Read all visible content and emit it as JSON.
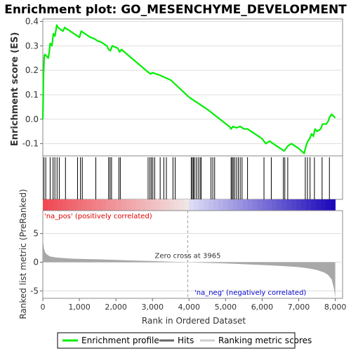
{
  "chart_data": [
    {
      "panel": "enrichment",
      "type": "line",
      "title": "Enrichment plot: GO_MESENCHYME_DEVELOPMENT",
      "ylabel": "Enrichment score (ES)",
      "ylim": [
        -0.15,
        0.41
      ],
      "yticks": [
        -0.1,
        0.0,
        0.1,
        0.2,
        0.3,
        0.4
      ],
      "ytick_labels": [
        "-0.1",
        "0.0",
        "0.1",
        "0.2",
        "0.3",
        "0.4"
      ],
      "xlim": [
        0,
        8200
      ],
      "grid": true,
      "series": [
        {
          "name": "Enrichment profile",
          "color": "#00ee00",
          "x": [
            0,
            20,
            40,
            60,
            150,
            180,
            200,
            250,
            290,
            330,
            350,
            380,
            420,
            500,
            550,
            600,
            650,
            700,
            950,
            1000,
            1050,
            1100,
            1300,
            1400,
            1450,
            1500,
            1600,
            1750,
            1800,
            1850,
            1900,
            2050,
            2100,
            2150,
            2900,
            2950,
            3000,
            3200,
            3500,
            4000,
            4500,
            4800,
            5100,
            5150,
            5200,
            5300,
            5400,
            5500,
            5600,
            6000,
            6100,
            6200,
            6300,
            6400,
            6500,
            6600,
            6700,
            6800,
            7000,
            7150,
            7200,
            7250,
            7300,
            7350,
            7400,
            7450,
            7500,
            7600,
            7650,
            7700,
            7750,
            7800,
            7850,
            7900,
            8000
          ],
          "y": [
            0.0,
            0.18,
            0.26,
            0.265,
            0.25,
            0.28,
            0.31,
            0.3,
            0.35,
            0.34,
            0.355,
            0.385,
            0.375,
            0.365,
            0.36,
            0.375,
            0.37,
            0.365,
            0.34,
            0.335,
            0.36,
            0.355,
            0.335,
            0.33,
            0.325,
            0.32,
            0.315,
            0.3,
            0.285,
            0.28,
            0.3,
            0.29,
            0.275,
            0.285,
            0.19,
            0.185,
            0.19,
            0.18,
            0.16,
            0.09,
            0.04,
            0.005,
            -0.03,
            -0.04,
            -0.03,
            -0.035,
            -0.03,
            -0.04,
            -0.04,
            -0.08,
            -0.1,
            -0.09,
            -0.1,
            -0.11,
            -0.12,
            -0.13,
            -0.11,
            -0.1,
            -0.12,
            -0.14,
            -0.11,
            -0.09,
            -0.08,
            -0.06,
            -0.07,
            -0.04,
            -0.05,
            -0.04,
            -0.02,
            -0.02,
            -0.02,
            -0.01,
            0.01,
            0.02,
            0.005
          ]
        }
      ],
      "hits_x": [
        30,
        80,
        200,
        280,
        330,
        390,
        450,
        620,
        950,
        1030,
        1080,
        1450,
        1800,
        1840,
        1880,
        2080,
        2120,
        2880,
        2930,
        2970,
        3010,
        3060,
        3210,
        3310,
        3380,
        3560,
        3620,
        4060,
        4090,
        4120,
        4150,
        4200,
        4250,
        4300,
        4330,
        4600,
        4650,
        4700,
        5150,
        5180,
        5210,
        5250,
        5300,
        5350,
        5400,
        5450,
        5600,
        6050,
        6250,
        6580,
        6620,
        6700,
        7180,
        7240,
        7310,
        7430,
        7640,
        7840
      ]
    },
    {
      "panel": "ranked-list",
      "type": "area",
      "ylabel": "Ranked list metric (PreRanked)",
      "xlabel": "Rank in Ordered Dataset",
      "xlim": [
        0,
        8200
      ],
      "xticks": [
        0,
        1000,
        2000,
        3000,
        4000,
        5000,
        6000,
        7000,
        8000
      ],
      "xtick_labels": [
        "0",
        "1,000",
        "2,000",
        "3,000",
        "4,000",
        "5,000",
        "6,000",
        "7,000",
        "8,000"
      ],
      "ylim": [
        -6.3,
        9.0
      ],
      "yticks": [
        -5,
        0,
        5
      ],
      "ytick_labels": [
        "-5",
        "0",
        "5"
      ],
      "grid": true,
      "zero_cross": 3965,
      "zero_cross_label": "Zero cross at 3965",
      "pos_label": "'na_pos' (positively correlated)",
      "neg_label": "'na_neg' (negatively correlated)",
      "color": "#a8a8a8",
      "x": [
        0,
        10,
        30,
        60,
        100,
        150,
        200,
        300,
        400,
        600,
        800,
        1000,
        1500,
        2000,
        2500,
        3000,
        3500,
        3965,
        4500,
        5000,
        5500,
        6000,
        6500,
        7000,
        7300,
        7500,
        7700,
        7800,
        7900,
        7950,
        7980,
        8000
      ],
      "values": [
        5.2,
        3.5,
        2.4,
        1.8,
        1.4,
        1.2,
        1.0,
        0.9,
        0.8,
        0.7,
        0.62,
        0.58,
        0.5,
        0.4,
        0.3,
        0.2,
        0.1,
        0.0,
        -0.12,
        -0.22,
        -0.35,
        -0.48,
        -0.65,
        -0.85,
        -1.1,
        -1.35,
        -1.8,
        -2.2,
        -3.0,
        -4.2,
        -5.2,
        -6.2
      ]
    }
  ],
  "legend": {
    "items": [
      {
        "label": "Enrichment profile",
        "color": "#00ee00"
      },
      {
        "label": "Hits",
        "color": "#666666"
      },
      {
        "label": "Ranking metric scores",
        "color": "#cccccc"
      }
    ]
  },
  "colors": {
    "profile": "#00ee00",
    "hit": "#000000",
    "pos_text": "#dd0000",
    "neg_text": "#0000cc",
    "zero_line": "#a0a0a0",
    "grid": "#dddddd"
  }
}
